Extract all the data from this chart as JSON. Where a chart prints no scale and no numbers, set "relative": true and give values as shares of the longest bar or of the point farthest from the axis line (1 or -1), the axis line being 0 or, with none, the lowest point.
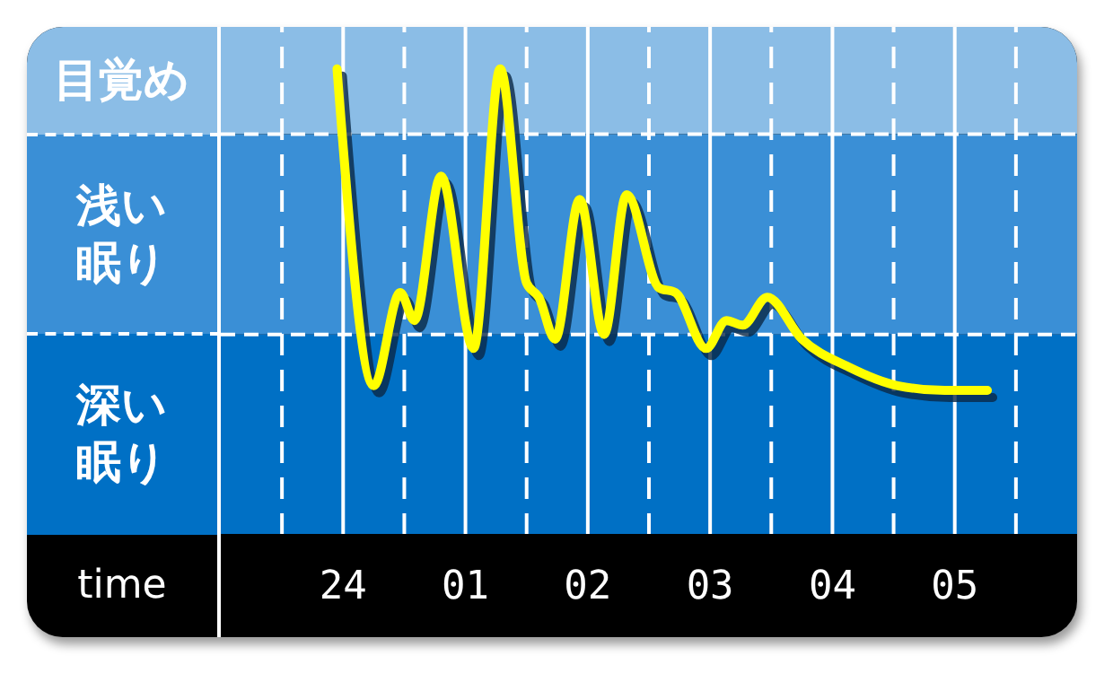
{
  "chart_data": {
    "type": "line",
    "relative": true,
    "xlabel": "time",
    "x": [
      "--01-01T23:57",
      "--01-02T00:15",
      "--01-02T00:28",
      "--01-02T00:35",
      "--01-02T00:48",
      "--01-02T01:04",
      "--01-02T01:17",
      "--01-02T01:30",
      "--01-02T01:36",
      "--01-02T01:44",
      "--01-02T01:56",
      "--01-02T02:08",
      "--01-02T02:19",
      "--01-02T02:35",
      "--01-02T02:43",
      "--01-02T02:58",
      "--01-02T03:08",
      "--01-02T03:16",
      "--01-02T03:28",
      "--01-02T03:45",
      "--01-02T04:08",
      "--01-02T04:32",
      "--01-02T04:55",
      "--01-02T05:16"
    ],
    "series": [
      {
        "color": "#ffff00",
        "values": [
          1.0,
          0.32,
          0.52,
          0.46,
          0.77,
          0.4,
          1.0,
          0.54,
          0.51,
          0.42,
          0.72,
          0.43,
          0.73,
          0.53,
          0.52,
          0.4,
          0.46,
          0.45,
          0.51,
          0.42,
          0.36,
          0.32,
          0.31,
          0.31
        ]
      }
    ],
    "xlim": [
      "--01-01T23:00",
      "--01-02T06:00"
    ],
    "xticks": [
      {
        "value": "--01-01T23:30",
        "label": null
      },
      {
        "value": "--01-02T00:00",
        "label": "24"
      },
      {
        "value": "--01-02T00:30",
        "label": null
      },
      {
        "value": "--01-02T01:00",
        "label": "01"
      },
      {
        "value": "--01-02T01:30",
        "label": null
      },
      {
        "value": "--01-02T02:00",
        "label": "02"
      },
      {
        "value": "--01-02T02:30",
        "label": null
      },
      {
        "value": "--01-02T03:00",
        "label": "03"
      },
      {
        "value": "--01-02T03:30",
        "label": null
      },
      {
        "value": "--01-02T04:00",
        "label": "04"
      },
      {
        "value": "--01-02T04:30",
        "label": null
      },
      {
        "value": "--01-02T05:00",
        "label": "05"
      },
      {
        "value": "--01-02T05:30",
        "label": null
      }
    ],
    "bands": [
      {
        "axis": "y",
        "from": 0.86,
        "to": 1.09,
        "label": "目覚め",
        "color": "#8bbde6"
      },
      {
        "axis": "y",
        "from": 0.43,
        "to": 0.86,
        "label": "浅い眠り",
        "color": "#3a8fd6"
      },
      {
        "axis": "y",
        "from": 0,
        "to": 0.43,
        "label": "深い眠り",
        "color": "#0070c5"
      }
    ],
    "grid": "x",
    "legend": false,
    "marker": "none",
    "line_style": "solid"
  }
}
